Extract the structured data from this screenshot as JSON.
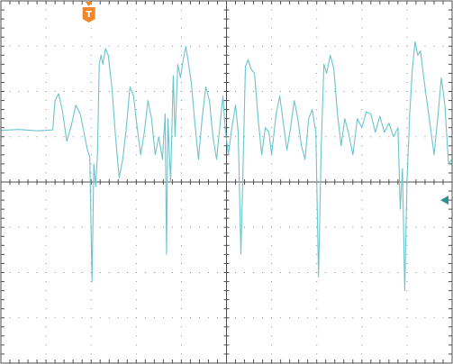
{
  "colors": {
    "background": "#ffffff",
    "grid_dots": "#8a8a8a",
    "frame": "#4d4d4d",
    "signal": "#6cc4cc",
    "trigger_marker": "#f2862b",
    "level_marker": "#2f8f98"
  },
  "trigger": {
    "icon": "trigger-flag-icon",
    "label": "T",
    "position_div": 1.95
  },
  "ground_marker": {
    "icon": "left-arrow-icon",
    "level_div": -0.3
  },
  "chart_data": {
    "type": "line",
    "title": "",
    "xlabel": "",
    "ylabel": "",
    "grid": true,
    "xlim": [
      0,
      10
    ],
    "ylim": [
      -4,
      4
    ],
    "x_divisions": 10,
    "y_divisions": 8,
    "minor_ticks_per_division": 5,
    "series": [
      {
        "name": "",
        "color": "#6cc4cc",
        "points": [
          [
            0.0,
            1.14
          ],
          [
            0.4,
            1.16
          ],
          [
            0.8,
            1.13
          ],
          [
            1.15,
            1.15
          ],
          [
            1.2,
            1.8
          ],
          [
            1.28,
            1.95
          ],
          [
            1.36,
            1.6
          ],
          [
            1.46,
            0.9
          ],
          [
            1.56,
            1.25
          ],
          [
            1.66,
            1.7
          ],
          [
            1.76,
            1.5
          ],
          [
            1.86,
            1.0
          ],
          [
            1.92,
            0.7
          ],
          [
            1.97,
            0.55
          ],
          [
            2.02,
            -2.2
          ],
          [
            2.06,
            0.4
          ],
          [
            2.1,
            -0.1
          ],
          [
            2.14,
            0.6
          ],
          [
            2.18,
            2.6
          ],
          [
            2.22,
            2.8
          ],
          [
            2.26,
            2.6
          ],
          [
            2.32,
            2.95
          ],
          [
            2.38,
            2.8
          ],
          [
            2.46,
            2.1
          ],
          [
            2.54,
            1.0
          ],
          [
            2.62,
            0.1
          ],
          [
            2.7,
            0.5
          ],
          [
            2.78,
            1.2
          ],
          [
            2.86,
            2.1
          ],
          [
            2.94,
            1.9
          ],
          [
            3.02,
            1.2
          ],
          [
            3.1,
            0.6
          ],
          [
            3.18,
            1.1
          ],
          [
            3.26,
            1.8
          ],
          [
            3.34,
            1.4
          ],
          [
            3.42,
            0.6
          ],
          [
            3.5,
            1.0
          ],
          [
            3.58,
            0.5
          ],
          [
            3.64,
            1.5
          ],
          [
            3.67,
            -1.6
          ],
          [
            3.7,
            1.4
          ],
          [
            3.76,
            0.0
          ],
          [
            3.82,
            2.35
          ],
          [
            3.86,
            1.0
          ],
          [
            3.92,
            2.6
          ],
          [
            3.98,
            2.3
          ],
          [
            4.04,
            2.7
          ],
          [
            4.1,
            3.0
          ],
          [
            4.16,
            2.6
          ],
          [
            4.22,
            2.2
          ],
          [
            4.3,
            1.3
          ],
          [
            4.38,
            0.5
          ],
          [
            4.46,
            1.4
          ],
          [
            4.54,
            2.1
          ],
          [
            4.62,
            1.8
          ],
          [
            4.7,
            1.0
          ],
          [
            4.78,
            0.5
          ],
          [
            4.86,
            1.3
          ],
          [
            4.92,
            1.9
          ],
          [
            4.97,
            1.2
          ],
          [
            5.04,
            0.6
          ],
          [
            5.12,
            1.2
          ],
          [
            5.2,
            1.7
          ],
          [
            5.26,
            1.1
          ],
          [
            5.32,
            -1.6
          ],
          [
            5.36,
            0.0
          ],
          [
            5.42,
            2.55
          ],
          [
            5.48,
            2.7
          ],
          [
            5.54,
            2.5
          ],
          [
            5.62,
            2.4
          ],
          [
            5.7,
            1.4
          ],
          [
            5.78,
            0.6
          ],
          [
            5.86,
            1.2
          ],
          [
            5.94,
            1.1
          ],
          [
            6.0,
            0.6
          ],
          [
            6.1,
            1.5
          ],
          [
            6.18,
            1.9
          ],
          [
            6.26,
            1.3
          ],
          [
            6.34,
            0.7
          ],
          [
            6.42,
            1.2
          ],
          [
            6.5,
            1.8
          ],
          [
            6.58,
            1.4
          ],
          [
            6.66,
            0.8
          ],
          [
            6.74,
            0.5
          ],
          [
            6.82,
            1.4
          ],
          [
            6.9,
            1.6
          ],
          [
            6.98,
            1.1
          ],
          [
            7.04,
            -2.1
          ],
          [
            7.1,
            0.8
          ],
          [
            7.16,
            2.6
          ],
          [
            7.22,
            2.4
          ],
          [
            7.3,
            2.8
          ],
          [
            7.38,
            2.5
          ],
          [
            7.46,
            1.5
          ],
          [
            7.54,
            0.8
          ],
          [
            7.62,
            1.4
          ],
          [
            7.7,
            1.1
          ],
          [
            7.8,
            0.6
          ],
          [
            7.9,
            1.4
          ],
          [
            8.0,
            1.2
          ],
          [
            8.1,
            1.55
          ],
          [
            8.2,
            1.5
          ],
          [
            8.3,
            1.1
          ],
          [
            8.4,
            1.45
          ],
          [
            8.5,
            1.1
          ],
          [
            8.6,
            1.3
          ],
          [
            8.7,
            1.0
          ],
          [
            8.8,
            1.2
          ],
          [
            8.85,
            -0.6
          ],
          [
            8.9,
            0.3
          ],
          [
            8.95,
            -2.4
          ],
          [
            9.0,
            0.0
          ],
          [
            9.06,
            1.5
          ],
          [
            9.12,
            2.5
          ],
          [
            9.18,
            3.1
          ],
          [
            9.24,
            2.8
          ],
          [
            9.3,
            2.9
          ],
          [
            9.36,
            2.4
          ],
          [
            9.44,
            1.8
          ],
          [
            9.52,
            1.2
          ],
          [
            9.6,
            0.6
          ],
          [
            9.68,
            1.4
          ],
          [
            9.76,
            2.3
          ],
          [
            9.84,
            1.7
          ],
          [
            9.92,
            0.4
          ],
          [
            10.0,
            0.5
          ]
        ]
      }
    ]
  }
}
